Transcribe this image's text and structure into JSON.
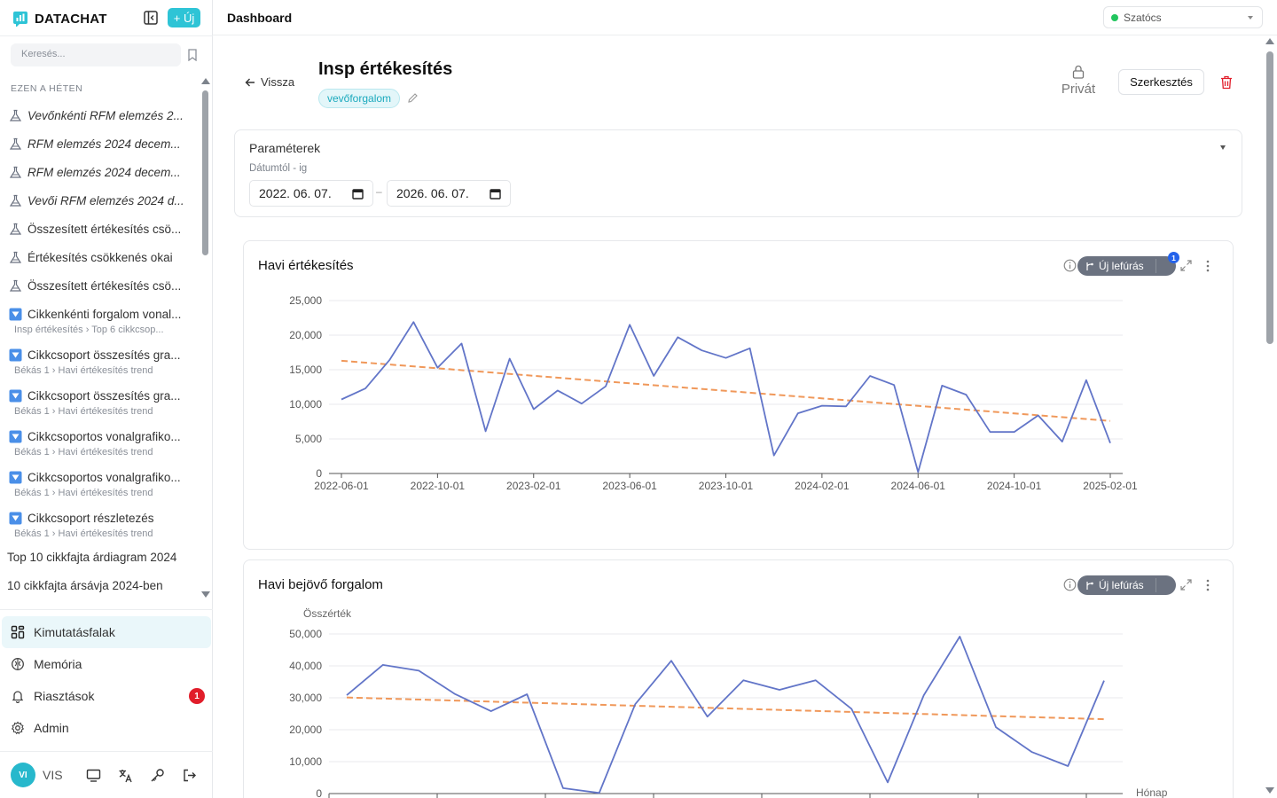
{
  "brand": {
    "name": "DATACHAT",
    "new_label": "+ Új"
  },
  "search": {
    "placeholder": "Keresés..."
  },
  "sidebar": {
    "section_label": "EZEN A HÉTEN",
    "items": [
      {
        "title": "Vevőnkénti RFM elemzés 2...",
        "italic": true,
        "icon": "flask-icon",
        "sub": ""
      },
      {
        "title": "RFM elemzés 2024 decem...",
        "italic": true,
        "icon": "flask-icon",
        "sub": ""
      },
      {
        "title": "RFM elemzés 2024 decem...",
        "italic": true,
        "icon": "flask-icon",
        "sub": ""
      },
      {
        "title": "Vevői RFM elemzés 2024 d...",
        "italic": true,
        "icon": "flask-icon",
        "sub": ""
      },
      {
        "title": "Összesített értékesítés csö...",
        "italic": false,
        "icon": "flask-icon",
        "sub": ""
      },
      {
        "title": "Értékesítés csökkenés okai",
        "italic": false,
        "icon": "flask-icon",
        "sub": ""
      },
      {
        "title": "Összesített értékesítés csö...",
        "italic": false,
        "icon": "flask-icon",
        "sub": ""
      },
      {
        "title": "Cikkenkénti forgalom vonal...",
        "italic": false,
        "icon": "filter-icon",
        "sub": "Insp értékesítés › Top 6 cikkcsop..."
      },
      {
        "title": "Cikkcsoport összesítés gra...",
        "italic": false,
        "icon": "filter-icon",
        "sub": "Békás 1 › Havi értékesítés trend"
      },
      {
        "title": "Cikkcsoport összesítés gra...",
        "italic": false,
        "icon": "filter-icon",
        "sub": "Békás 1 › Havi értékesítés trend"
      },
      {
        "title": "Cikkcsoportos vonalgrafiko...",
        "italic": false,
        "icon": "filter-icon",
        "sub": "Békás 1 › Havi értékesítés trend"
      },
      {
        "title": "Cikkcsoportos vonalgrafiko...",
        "italic": false,
        "icon": "filter-icon",
        "sub": "Békás 1 › Havi értékesítés trend"
      },
      {
        "title": "Cikkcsoport részletezés",
        "italic": false,
        "icon": "filter-icon",
        "sub": "Békás 1 › Havi értékesítés trend"
      }
    ],
    "plain_items": [
      "Top 10 cikkfajta árdiagram 2024",
      "10 cikkfajta ársávja 2024-ben"
    ],
    "menu": [
      {
        "label": "Kimutatásfalak",
        "icon": "grid-icon",
        "active": true
      },
      {
        "label": "Memória",
        "icon": "brain-icon",
        "active": false
      },
      {
        "label": "Riasztások",
        "icon": "bell-icon",
        "active": false,
        "badge": "1"
      },
      {
        "label": "Admin",
        "icon": "gear-icon",
        "active": false
      }
    ],
    "user": {
      "initials": "VI",
      "name": "VIS"
    }
  },
  "topbar": {
    "title": "Dashboard",
    "user_select": "Szatócs"
  },
  "page": {
    "back_label": "Vissza",
    "title": "Insp értékesítés",
    "tag": "vevőforgalom",
    "privacy_label": "Privát",
    "edit_label": "Szerkesztés"
  },
  "params": {
    "title": "Paraméterek",
    "date_label": "Dátumtól - ig",
    "date_from": "2022. 06. 07.",
    "date_to": "2026. 06. 07.",
    "date_sep": "–"
  },
  "cards": [
    {
      "title": "Havi értékesítés",
      "drill_label": "Új lefúrás",
      "drill_badge": "1"
    },
    {
      "title": "Havi bejövő forgalom",
      "drill_label": "Új lefúrás"
    }
  ],
  "colors": {
    "accent": "#2ec4d6",
    "series": "#6275c8",
    "trend": "#f0985a",
    "alert": "#e11d2a"
  },
  "chart_data": [
    {
      "type": "line",
      "title": "Havi értékesítés",
      "xlabel": "",
      "ylabel": "",
      "ylim": [
        0,
        25000
      ],
      "yticks": [
        0,
        5000,
        10000,
        15000,
        20000,
        25000
      ],
      "ytick_labels": [
        "0",
        "5,000",
        "10,000",
        "15,000",
        "20,000",
        "25,000"
      ],
      "xtick_labels": [
        "2022-06-01",
        "2022-10-01",
        "2023-02-01",
        "2023-06-01",
        "2023-10-01",
        "2024-02-01",
        "2024-06-01",
        "2024-10-01",
        "2025-02-01"
      ],
      "xtick_index": [
        0,
        4,
        8,
        12,
        16,
        20,
        24,
        28,
        32
      ],
      "grid": true,
      "series": [
        {
          "values": [
            10700,
            12300,
            16400,
            21900,
            15300,
            18800,
            6100,
            16600,
            9300,
            12000,
            10100,
            12600,
            21500,
            14100,
            19700,
            17800,
            16700,
            18100,
            2600,
            8700,
            9800,
            9700,
            14100,
            12800,
            200,
            12700,
            11400,
            6000,
            6000,
            8400,
            4600,
            13500,
            4400
          ]
        },
        {
          "trend": true,
          "values": [
            16300,
            7600
          ]
        }
      ]
    },
    {
      "type": "line",
      "title": "Havi bejövő forgalom",
      "xlabel": "Hónap",
      "ylabel": "Összérték",
      "ylim": [
        0,
        50000
      ],
      "yticks": [
        0,
        10000,
        20000,
        30000,
        40000,
        50000
      ],
      "ytick_labels": [
        "0",
        "10,000",
        "20,000",
        "30,000",
        "40,000",
        "50,000"
      ],
      "grid": true,
      "series": [
        {
          "values": [
            30800,
            40300,
            38500,
            31200,
            25800,
            31100,
            1700,
            200,
            28000,
            41600,
            24100,
            35500,
            32500,
            35500,
            26500,
            3500,
            30800,
            49200,
            20800,
            13000,
            8600,
            35400
          ]
        },
        {
          "trend": true,
          "values": [
            30100,
            23300
          ]
        }
      ]
    }
  ]
}
